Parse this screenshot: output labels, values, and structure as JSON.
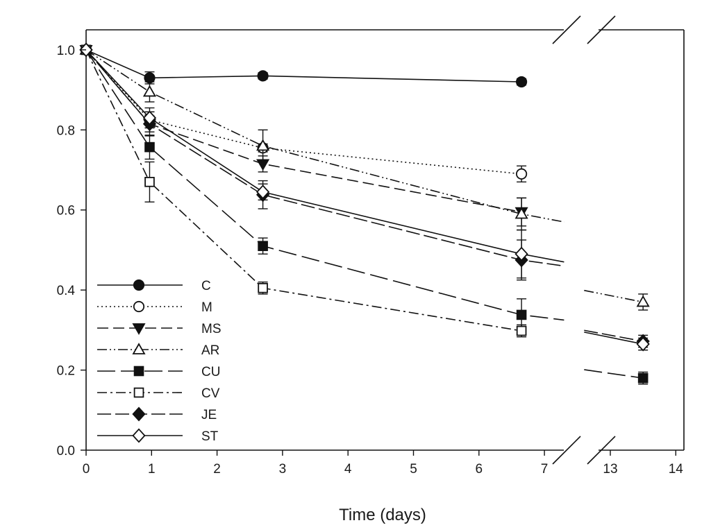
{
  "chart_data": {
    "type": "line",
    "xlabel": "Time (days)",
    "ylabel": "",
    "ylim": [
      0,
      1.05
    ],
    "xlim": [
      0,
      14
    ],
    "x_break": [
      7.3,
      12.6
    ],
    "x_ticks": [
      0,
      1,
      2,
      3,
      4,
      5,
      6,
      7,
      13,
      14
    ],
    "y_ticks": [
      "0.0",
      "0.2",
      "0.4",
      "0.6",
      "0.8",
      "1.0"
    ],
    "grid": false,
    "legend_position": "bottom-left",
    "series": [
      {
        "name": "C",
        "marker": "circle",
        "filled": true,
        "dash": "",
        "points": [
          {
            "x": 0,
            "y": 1.0,
            "err": 0
          },
          {
            "x": 0.97,
            "y": 0.93,
            "err": 0.015
          },
          {
            "x": 2.7,
            "y": 0.935,
            "err": 0.008
          },
          {
            "x": 6.65,
            "y": 0.92,
            "err": 0.008
          }
        ],
        "break_tail": null,
        "tail": []
      },
      {
        "name": "M",
        "marker": "circle",
        "filled": false,
        "dash": "2,4",
        "points": [
          {
            "x": 0,
            "y": 1.0,
            "err": 0
          },
          {
            "x": 0.97,
            "y": 0.825,
            "err": 0.02
          },
          {
            "x": 2.7,
            "y": 0.755,
            "err": 0.01
          },
          {
            "x": 6.65,
            "y": 0.69,
            "err": 0.02
          }
        ],
        "break_tail": null,
        "tail": []
      },
      {
        "name": "MS",
        "marker": "triangle-down",
        "filled": true,
        "dash": "16,7",
        "points": [
          {
            "x": 0,
            "y": 1.0,
            "err": 0
          },
          {
            "x": 0.97,
            "y": 0.815,
            "err": 0.02
          },
          {
            "x": 2.7,
            "y": 0.715,
            "err": 0.02
          },
          {
            "x": 6.65,
            "y": 0.595,
            "err": 0.035
          }
        ],
        "break_tail": null,
        "tail": []
      },
      {
        "name": "AR",
        "marker": "triangle-up",
        "filled": false,
        "dash": "14,4,2,4,2,4",
        "points": [
          {
            "x": 0,
            "y": 1.0,
            "err": 0
          },
          {
            "x": 0.97,
            "y": 0.895,
            "err": 0.025
          },
          {
            "x": 2.7,
            "y": 0.76,
            "err": 0.04
          },
          {
            "x": 6.65,
            "y": 0.59,
            "err": 0.04
          }
        ],
        "break_tail": 0.57,
        "tail": [
          {
            "x": 13.5,
            "y": 0.37,
            "err": 0.02
          }
        ]
      },
      {
        "name": "CU",
        "marker": "square",
        "filled": true,
        "dash": "26,8",
        "points": [
          {
            "x": 0,
            "y": 1.0,
            "err": 0
          },
          {
            "x": 0.97,
            "y": 0.757,
            "err": 0.03
          },
          {
            "x": 2.7,
            "y": 0.51,
            "err": 0.02
          },
          {
            "x": 6.65,
            "y": 0.338,
            "err": 0.04
          }
        ],
        "break_tail": 0.325,
        "tail": [
          {
            "x": 13.5,
            "y": 0.18,
            "err": 0.015
          }
        ]
      },
      {
        "name": "CV",
        "marker": "square",
        "filled": false,
        "dash": "14,5,3,5",
        "points": [
          {
            "x": 0,
            "y": 1.0,
            "err": 0
          },
          {
            "x": 0.97,
            "y": 0.67,
            "err": 0.05
          },
          {
            "x": 2.7,
            "y": 0.405,
            "err": 0.015
          },
          {
            "x": 6.65,
            "y": 0.298,
            "err": 0.015
          }
        ],
        "break_tail": null,
        "tail": []
      },
      {
        "name": "JE",
        "marker": "diamond",
        "filled": true,
        "dash": "20,6",
        "points": [
          {
            "x": 0,
            "y": 1.0,
            "err": 0
          },
          {
            "x": 0.97,
            "y": 0.815,
            "err": 0.03
          },
          {
            "x": 2.7,
            "y": 0.638,
            "err": 0.035
          },
          {
            "x": 6.65,
            "y": 0.475,
            "err": 0.05
          }
        ],
        "break_tail": 0.46,
        "tail": [
          {
            "x": 13.5,
            "y": 0.272,
            "err": 0.015
          }
        ]
      },
      {
        "name": "ST",
        "marker": "diamond",
        "filled": false,
        "dash": "",
        "points": [
          {
            "x": 0,
            "y": 1.0,
            "err": 0
          },
          {
            "x": 0.97,
            "y": 0.83,
            "err": 0.025
          },
          {
            "x": 2.7,
            "y": 0.645,
            "err": 0.02
          },
          {
            "x": 6.65,
            "y": 0.49,
            "err": 0.06
          }
        ],
        "break_tail": 0.47,
        "tail": [
          {
            "x": 13.5,
            "y": 0.265,
            "err": 0.015
          }
        ]
      }
    ]
  }
}
